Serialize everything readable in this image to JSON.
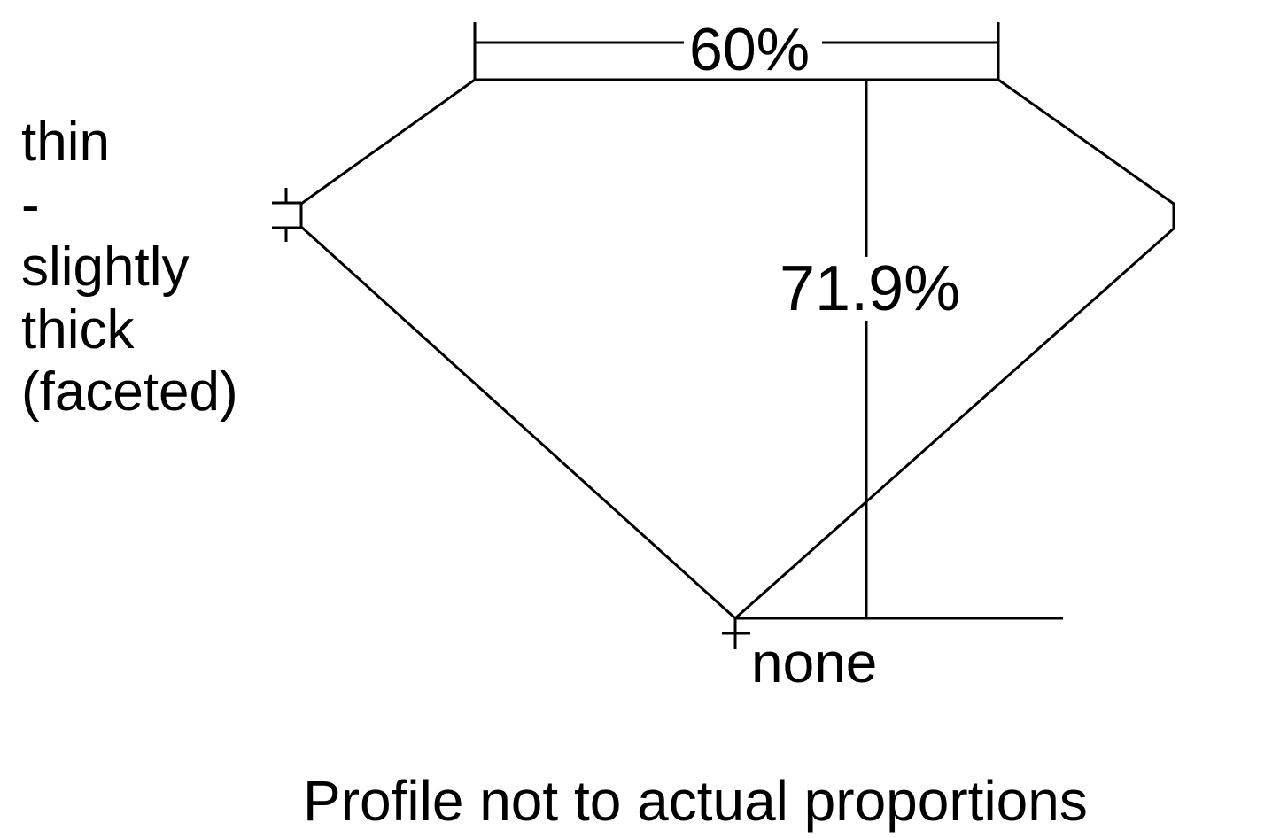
{
  "diagram": {
    "table_percent": "60%",
    "depth_percent": "71.9%",
    "girdle_lines": [
      "thin",
      "-",
      "slightly",
      "thick",
      "(faceted)"
    ],
    "culet": "none",
    "note": "Profile not to actual proportions",
    "line_color": "#000000"
  }
}
